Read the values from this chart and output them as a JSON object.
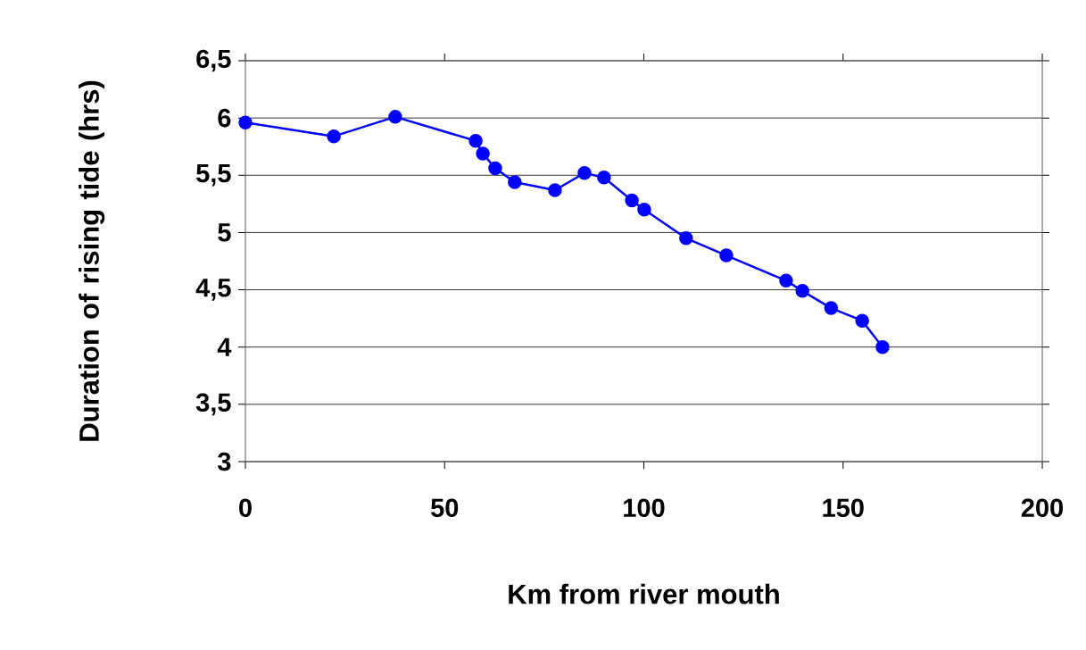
{
  "chart_data": {
    "type": "line",
    "xlabel": "Km from river mouth",
    "ylabel": "Duration of rising tide (hrs)",
    "x": [
      0,
      22.2,
      37.6,
      57.8,
      59.6,
      62.7,
      67.6,
      77.7,
      85.1,
      90.0,
      97.0,
      100.1,
      110.6,
      120.7,
      135.7,
      139.8,
      147,
      154.8,
      159.9
    ],
    "values": [
      5.96,
      5.84,
      6.01,
      5.8,
      5.69,
      5.56,
      5.44,
      5.37,
      5.52,
      5.48,
      5.28,
      5.2,
      4.95,
      4.8,
      4.58,
      4.49,
      4.34,
      4.23,
      4.0
    ],
    "color": "#0000ff",
    "marker": "circle",
    "grid": "y",
    "xlim": [
      0,
      200
    ],
    "ylim": [
      3,
      6.5
    ],
    "xticks": [
      0,
      50,
      100,
      150,
      200
    ],
    "yticks": [
      3,
      {
        "value": 3.5,
        "label": "3,5"
      },
      4,
      {
        "value": 4.5,
        "label": "4,5"
      },
      5,
      {
        "value": 5.5,
        "label": "5,5"
      },
      6,
      {
        "value": 6.5,
        "label": "6,5"
      }
    ]
  }
}
